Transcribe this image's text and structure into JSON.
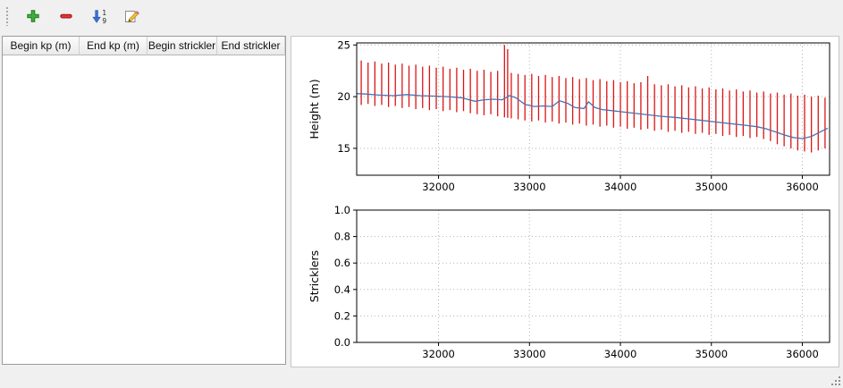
{
  "window": {
    "background": "#f0f0f0"
  },
  "toolbar": {
    "buttons": [
      {
        "icon": "plus-icon",
        "name": "add"
      },
      {
        "icon": "minus-icon",
        "name": "remove"
      },
      {
        "icon": "sort-ascending-icon",
        "name": "sort"
      },
      {
        "icon": "edit-icon",
        "name": "edit"
      }
    ]
  },
  "table": {
    "columns": [
      "Begin kp (m)",
      "End kp (m)",
      "Begin strickler",
      "End strickler"
    ],
    "rows": []
  },
  "chart_data": [
    {
      "type": "line",
      "title": "",
      "xlabel": "",
      "ylabel": "Height (m)",
      "xlim": [
        31100,
        36300
      ],
      "ylim": [
        12.4,
        25.2
      ],
      "xticks": [
        32000,
        33000,
        34000,
        35000,
        36000
      ],
      "xticklabels": [
        "32000",
        "33000",
        "34000",
        "35000",
        "36000"
      ],
      "yticks": [
        15,
        20,
        25
      ],
      "yticklabels": [
        "15",
        "20",
        "25"
      ],
      "grid": true,
      "legend": "none",
      "bar_color": "#dc1414",
      "line_color": "#4f6fae",
      "bars": [
        [
          31150,
          19.2,
          23.5
        ],
        [
          31225,
          19.3,
          23.3
        ],
        [
          31300,
          19.1,
          23.4
        ],
        [
          31375,
          19.2,
          23.2
        ],
        [
          31450,
          19.0,
          23.3
        ],
        [
          31525,
          19.1,
          23.1
        ],
        [
          31600,
          18.9,
          23.2
        ],
        [
          31675,
          19.0,
          23.0
        ],
        [
          31750,
          18.8,
          23.1
        ],
        [
          31825,
          18.9,
          22.9
        ],
        [
          31900,
          18.7,
          23.0
        ],
        [
          31975,
          18.8,
          22.8
        ],
        [
          32050,
          18.6,
          22.9
        ],
        [
          32125,
          18.7,
          22.7
        ],
        [
          32200,
          18.5,
          22.8
        ],
        [
          32275,
          18.6,
          22.6
        ],
        [
          32350,
          18.4,
          22.7
        ],
        [
          32425,
          18.3,
          22.5
        ],
        [
          32500,
          18.2,
          22.6
        ],
        [
          32575,
          18.3,
          22.4
        ],
        [
          32650,
          18.1,
          22.5
        ],
        [
          32725,
          18.0,
          25.0
        ],
        [
          32760,
          17.95,
          24.6
        ],
        [
          32800,
          17.9,
          22.3
        ],
        [
          32875,
          17.8,
          22.2
        ],
        [
          32950,
          17.7,
          22.1
        ],
        [
          33025,
          17.6,
          22.2
        ],
        [
          33100,
          17.7,
          22.0
        ],
        [
          33175,
          17.5,
          22.1
        ],
        [
          33250,
          17.6,
          21.9
        ],
        [
          33325,
          17.4,
          22.0
        ],
        [
          33400,
          17.5,
          21.8
        ],
        [
          33475,
          17.3,
          21.9
        ],
        [
          33550,
          17.4,
          21.7
        ],
        [
          33625,
          17.2,
          21.8
        ],
        [
          33700,
          17.3,
          21.6
        ],
        [
          33775,
          17.1,
          21.7
        ],
        [
          33850,
          17.2,
          21.5
        ],
        [
          33925,
          17.0,
          21.6
        ],
        [
          34000,
          17.1,
          21.4
        ],
        [
          34075,
          16.9,
          21.5
        ],
        [
          34150,
          17.0,
          21.3
        ],
        [
          34225,
          16.8,
          21.4
        ],
        [
          34300,
          16.9,
          22.0
        ],
        [
          34375,
          16.7,
          21.2
        ],
        [
          34450,
          16.8,
          21.1
        ],
        [
          34525,
          16.6,
          21.2
        ],
        [
          34600,
          16.7,
          21.0
        ],
        [
          34675,
          16.5,
          21.1
        ],
        [
          34750,
          16.6,
          20.9
        ],
        [
          34825,
          16.4,
          21.0
        ],
        [
          34900,
          16.5,
          20.8
        ],
        [
          34975,
          16.3,
          20.9
        ],
        [
          35050,
          16.4,
          20.7
        ],
        [
          35125,
          16.2,
          20.8
        ],
        [
          35200,
          16.3,
          20.6
        ],
        [
          35275,
          16.1,
          20.7
        ],
        [
          35350,
          16.2,
          20.5
        ],
        [
          35425,
          16.0,
          20.6
        ],
        [
          35500,
          16.1,
          20.4
        ],
        [
          35575,
          15.9,
          20.5
        ],
        [
          35650,
          15.7,
          20.3
        ],
        [
          35725,
          15.4,
          20.4
        ],
        [
          35800,
          15.2,
          20.2
        ],
        [
          35875,
          15.0,
          20.3
        ],
        [
          35950,
          14.8,
          20.1
        ],
        [
          36025,
          14.7,
          20.2
        ],
        [
          36100,
          14.6,
          20.0
        ],
        [
          36175,
          14.8,
          20.1
        ],
        [
          36250,
          15.0,
          19.9
        ]
      ],
      "line": [
        [
          31100,
          20.3
        ],
        [
          31200,
          20.25
        ],
        [
          31350,
          20.15
        ],
        [
          31500,
          20.1
        ],
        [
          31650,
          20.2
        ],
        [
          31800,
          20.1
        ],
        [
          31950,
          20.05
        ],
        [
          32100,
          20.0
        ],
        [
          32250,
          19.9
        ],
        [
          32400,
          19.55
        ],
        [
          32500,
          19.7
        ],
        [
          32600,
          19.75
        ],
        [
          32700,
          19.7
        ],
        [
          32780,
          20.1
        ],
        [
          32850,
          19.9
        ],
        [
          32950,
          19.25
        ],
        [
          33050,
          19.05
        ],
        [
          33150,
          19.1
        ],
        [
          33250,
          19.05
        ],
        [
          33330,
          19.6
        ],
        [
          33420,
          19.35
        ],
        [
          33500,
          18.95
        ],
        [
          33600,
          18.85
        ],
        [
          33650,
          19.5
        ],
        [
          33720,
          18.95
        ],
        [
          33800,
          18.75
        ],
        [
          33900,
          18.65
        ],
        [
          34000,
          18.55
        ],
        [
          34150,
          18.4
        ],
        [
          34300,
          18.25
        ],
        [
          34450,
          18.1
        ],
        [
          34600,
          18.0
        ],
        [
          34750,
          17.85
        ],
        [
          34900,
          17.7
        ],
        [
          35050,
          17.55
        ],
        [
          35200,
          17.4
        ],
        [
          35350,
          17.25
        ],
        [
          35500,
          17.1
        ],
        [
          35600,
          16.9
        ],
        [
          35700,
          16.6
        ],
        [
          35800,
          16.3
        ],
        [
          35900,
          16.05
        ],
        [
          36000,
          15.95
        ],
        [
          36100,
          16.15
        ],
        [
          36200,
          16.6
        ],
        [
          36280,
          16.95
        ]
      ]
    },
    {
      "type": "line",
      "title": "",
      "xlabel": "",
      "ylabel": "Stricklers",
      "xlim": [
        31100,
        36300
      ],
      "ylim": [
        0.0,
        1.0
      ],
      "xticks": [
        32000,
        33000,
        34000,
        35000,
        36000
      ],
      "xticklabels": [
        "32000",
        "33000",
        "34000",
        "35000",
        "36000"
      ],
      "yticks": [
        0.0,
        0.2,
        0.4,
        0.6,
        0.8,
        1.0
      ],
      "yticklabels": [
        "0.0",
        "0.2",
        "0.4",
        "0.6",
        "0.8",
        "1.0"
      ],
      "grid": true,
      "legend": "none",
      "bars": [],
      "line": []
    }
  ]
}
